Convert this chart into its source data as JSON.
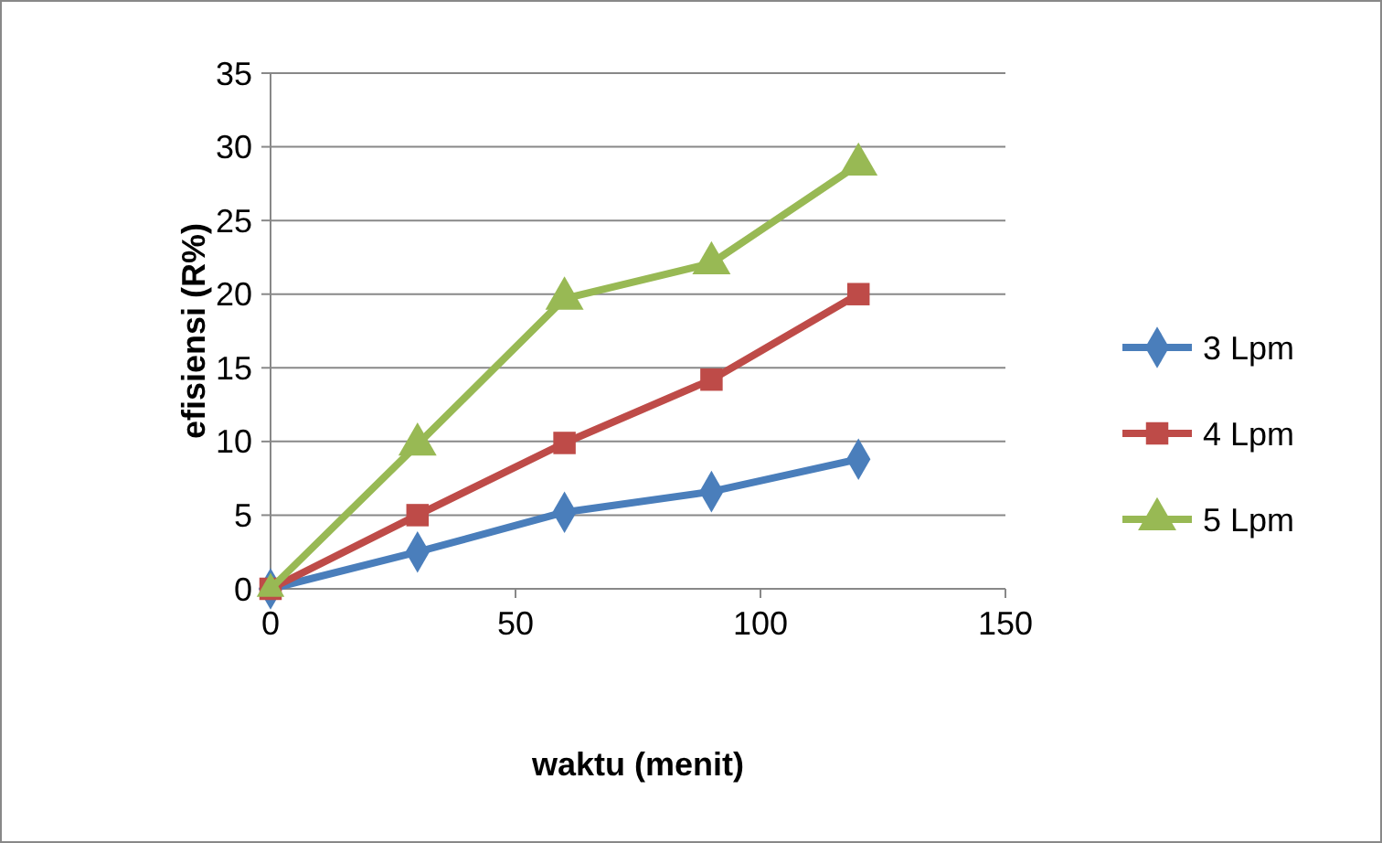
{
  "chart_data": {
    "type": "line",
    "xlabel": "waktu (menit)",
    "ylabel": "efisiensi (R%)",
    "x": [
      0,
      30,
      60,
      90,
      120
    ],
    "xlim": [
      0,
      150
    ],
    "xticks": [
      0,
      50,
      100,
      150
    ],
    "ylim": [
      0,
      35
    ],
    "yticks": [
      0,
      5,
      10,
      15,
      20,
      25,
      30,
      35
    ],
    "grid": "y",
    "legend": "right",
    "series": [
      {
        "name": "3 Lpm",
        "color": "#4a7ebb",
        "marker": "diamond",
        "values": [
          0,
          2.5,
          5.2,
          6.6,
          8.8
        ]
      },
      {
        "name": "4 Lpm",
        "color": "#be4b48",
        "marker": "square",
        "values": [
          0,
          5,
          9.9,
          14.2,
          20
        ]
      },
      {
        "name": "5 Lpm",
        "color": "#98b954",
        "marker": "triangle",
        "values": [
          0,
          9.8,
          19.7,
          22.1,
          28.8
        ]
      }
    ]
  }
}
